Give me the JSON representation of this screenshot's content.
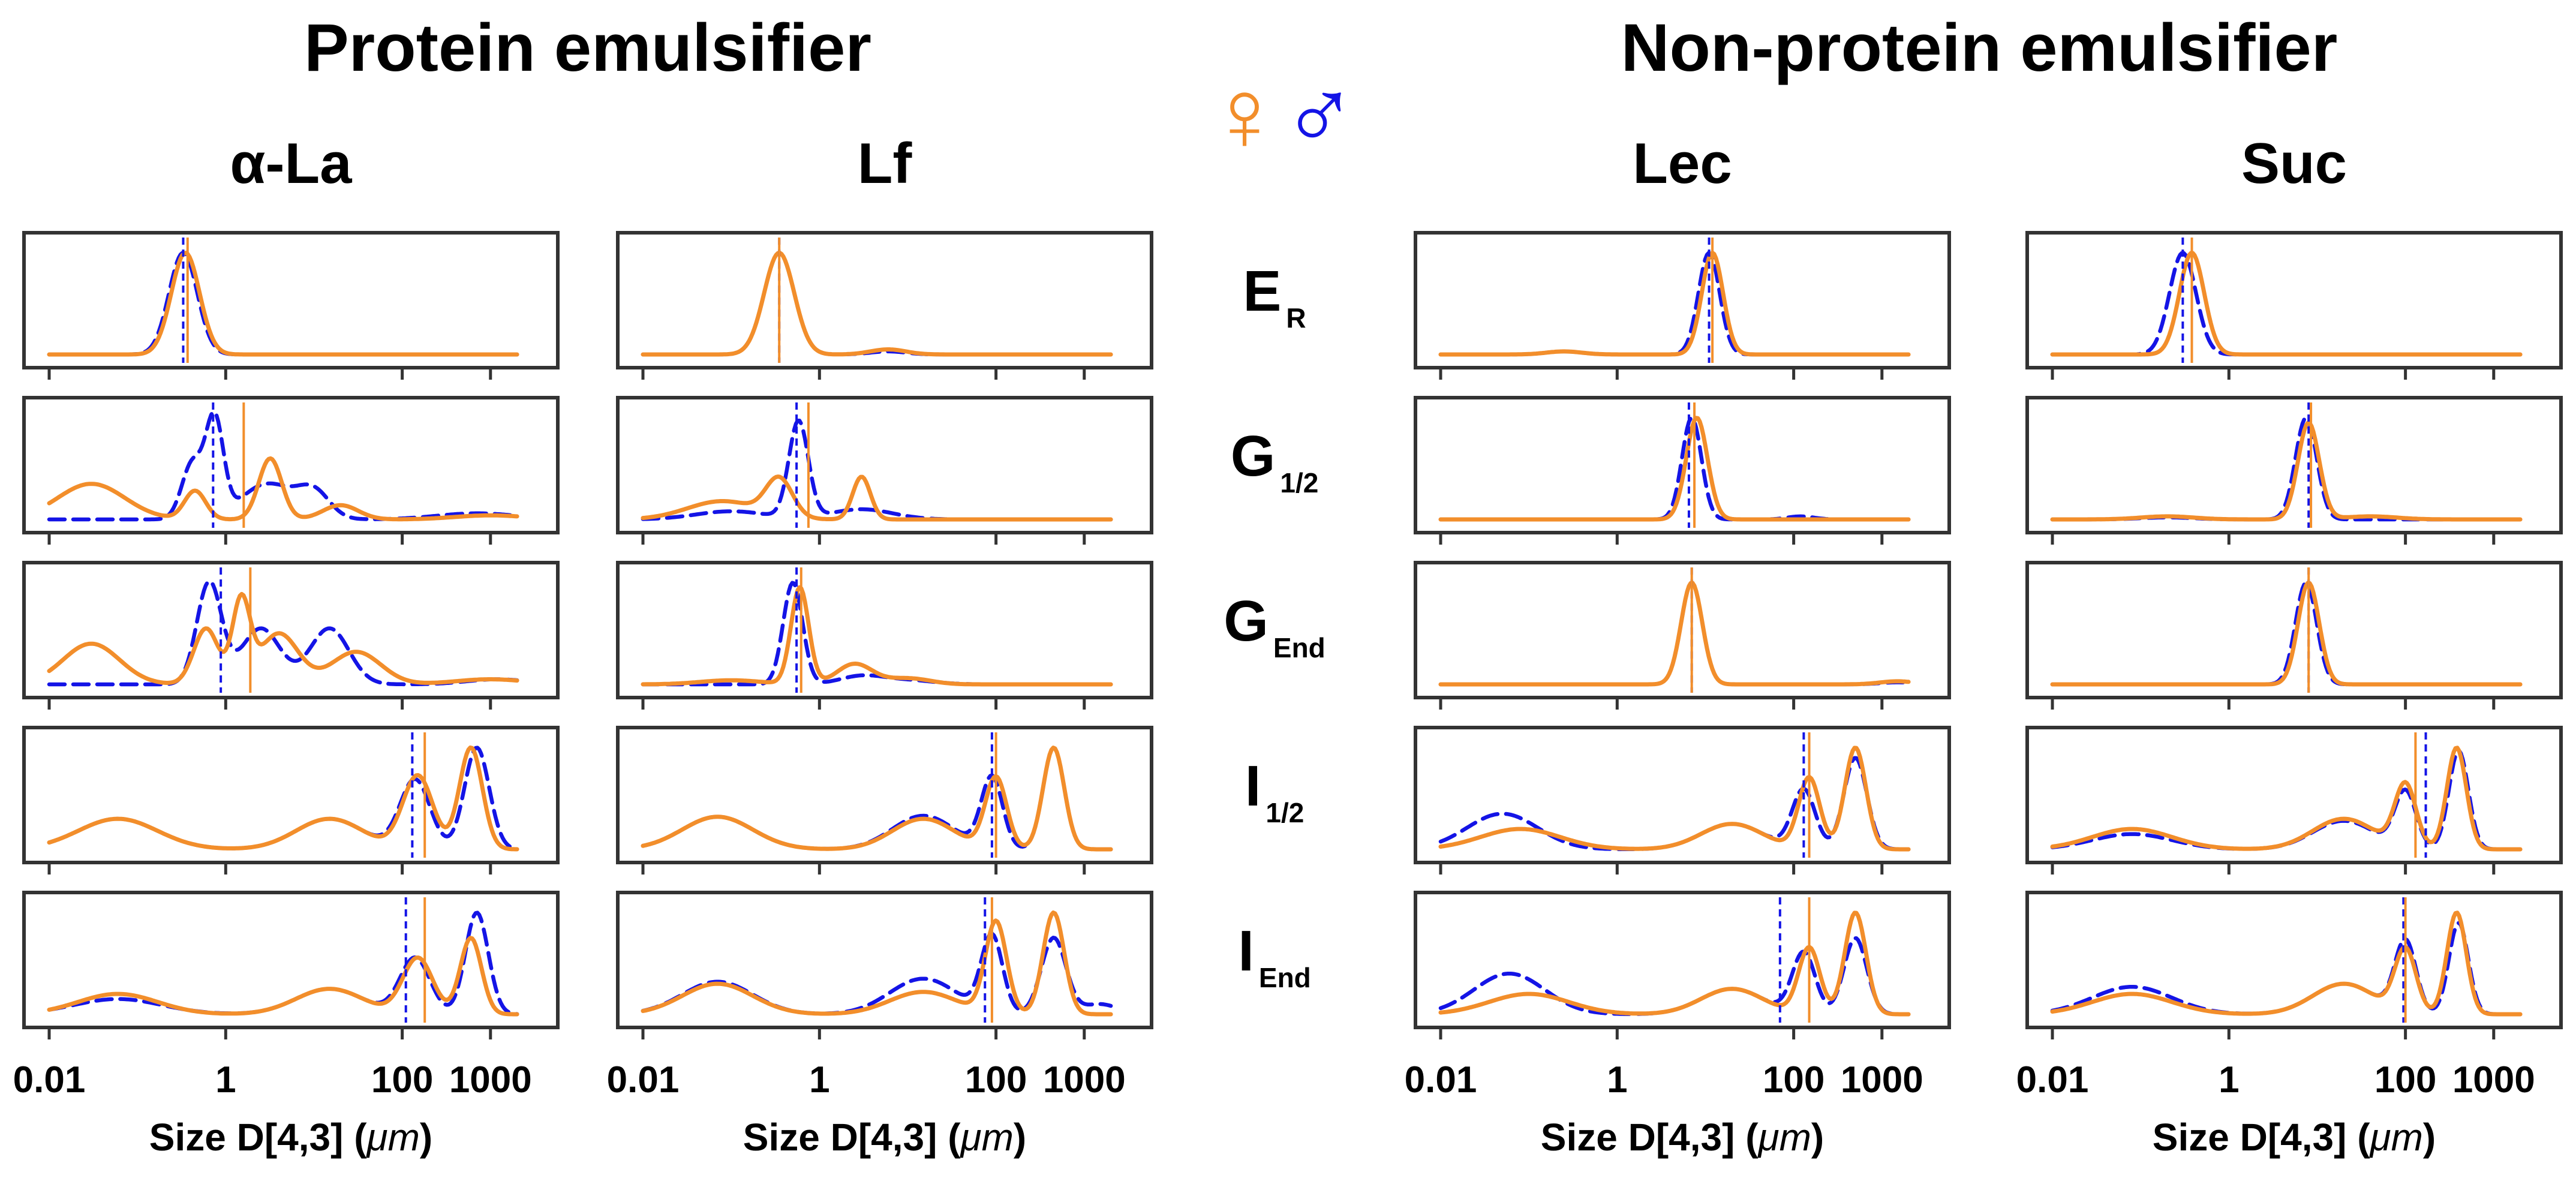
{
  "headers": {
    "protein_group": "Protein emulsifier",
    "nonprotein_group": "Non-protein emulsifier",
    "female_symbol": "♀",
    "male_symbol": "♂"
  },
  "columns": [
    {
      "key": "ala",
      "title": "α-La"
    },
    {
      "key": "lf",
      "title": "Lf"
    },
    {
      "key": "lec",
      "title": "Lec"
    },
    {
      "key": "suc",
      "title": "Suc"
    }
  ],
  "rows": [
    {
      "key": "er",
      "label_main": "E",
      "label_sub": "R"
    },
    {
      "key": "g12",
      "label_main": "G",
      "label_sub": "1/2"
    },
    {
      "key": "gend",
      "label_main": "G",
      "label_sub": "End"
    },
    {
      "key": "i12",
      "label_main": "I",
      "label_sub": "1/2"
    },
    {
      "key": "iend",
      "label_main": "I",
      "label_sub": "End"
    }
  ],
  "colors": {
    "female": "#f28e2b",
    "male": "#1414e6",
    "frame": "#333333"
  },
  "chart_data": {
    "type": "line",
    "x_scale": "log",
    "xlim": [
      0.01,
      3000
    ],
    "ylim": [
      0,
      1.15
    ],
    "y_ticks_visible": false,
    "xlabel_text": "Size D[4,3] (",
    "xlabel_unit": "μm",
    "xlabel_close": ")",
    "xticks": [
      {
        "value": 0.01,
        "label": "0.01"
      },
      {
        "value": 1,
        "label": "1"
      },
      {
        "value": 100,
        "label": "100"
      },
      {
        "value": 1000,
        "label": "1000"
      }
    ],
    "series_legend": [
      {
        "name": "female",
        "symbol": "♀",
        "style": "solid"
      },
      {
        "name": "male",
        "symbol": "♂",
        "style": "dashed"
      }
    ],
    "panels": {
      "ala": {
        "er": {
          "female": {
            "peaks": [
              [
                0.35,
                1.0,
                0.16
              ]
            ],
            "median": 0.37
          },
          "male": {
            "peaks": [
              [
                0.33,
                1.0,
                0.16
              ]
            ],
            "median": 0.33
          }
        },
        "g12": {
          "female": {
            "peaks": [
              [
                0.03,
                0.35,
                0.38
              ],
              [
                0.45,
                0.28,
                0.12
              ],
              [
                3.2,
                0.6,
                0.13
              ],
              [
                20,
                0.14,
                0.2
              ],
              [
                1000,
                0.04,
                0.4
              ]
            ],
            "median": 1.6
          },
          "male": {
            "peaks": [
              [
                0.42,
                0.55,
                0.12
              ],
              [
                0.75,
                0.95,
                0.1
              ],
              [
                3,
                0.35,
                0.3
              ],
              [
                10,
                0.25,
                0.18
              ],
              [
                700,
                0.06,
                0.45
              ]
            ],
            "median": 0.72
          }
        },
        "gend": {
          "female": {
            "peaks": [
              [
                0.03,
                0.4,
                0.32
              ],
              [
                0.6,
                0.55,
                0.14
              ],
              [
                1.5,
                0.8,
                0.1
              ],
              [
                4,
                0.5,
                0.22
              ],
              [
                30,
                0.32,
                0.28
              ],
              [
                1000,
                0.05,
                0.4
              ]
            ],
            "median": 1.9
          },
          "male": {
            "peaks": [
              [
                0.65,
                1.0,
                0.14
              ],
              [
                2.5,
                0.55,
                0.22
              ],
              [
                15,
                0.55,
                0.22
              ],
              [
                1200,
                0.05,
                0.35
              ]
            ],
            "median": 0.88
          }
        },
        "i12": {
          "female": {
            "peaks": [
              [
                0.06,
                0.3,
                0.45
              ],
              [
                15,
                0.3,
                0.38
              ],
              [
                150,
                0.72,
                0.17
              ],
              [
                600,
                1.0,
                0.13
              ]
            ],
            "median": 180
          },
          "male": {
            "peaks": [
              [
                0.06,
                0.3,
                0.45
              ],
              [
                15,
                0.3,
                0.38
              ],
              [
                140,
                0.68,
                0.17
              ],
              [
                700,
                1.0,
                0.14
              ]
            ],
            "median": 130
          }
        },
        "iend": {
          "female": {
            "peaks": [
              [
                0.06,
                0.2,
                0.45
              ],
              [
                15,
                0.25,
                0.38
              ],
              [
                150,
                0.55,
                0.17
              ],
              [
                600,
                0.75,
                0.12
              ]
            ],
            "median": 180
          },
          "male": {
            "peaks": [
              [
                0.06,
                0.15,
                0.5
              ],
              [
                15,
                0.25,
                0.38
              ],
              [
                140,
                0.55,
                0.17
              ],
              [
                700,
                1.0,
                0.13
              ]
            ],
            "median": 110
          }
        }
      },
      "lf": {
        "er": {
          "female": {
            "peaks": [
              [
                0.35,
                1.0,
                0.17
              ],
              [
                6,
                0.05,
                0.2
              ]
            ],
            "median": 0.35
          },
          "male": {
            "peaks": [
              [
                0.35,
                1.0,
                0.17
              ],
              [
                6,
                0.03,
                0.2
              ]
            ],
            "median": 0.35
          }
        },
        "g12": {
          "female": {
            "peaks": [
              [
                0.08,
                0.18,
                0.4
              ],
              [
                0.35,
                0.37,
                0.15
              ],
              [
                3,
                0.42,
                0.1
              ]
            ],
            "median": 0.75
          },
          "male": {
            "peaks": [
              [
                0.1,
                0.08,
                0.4
              ],
              [
                0.58,
                0.95,
                0.11
              ],
              [
                3,
                0.1,
                0.35
              ]
            ],
            "median": 0.55
          }
        },
        "gend": {
          "female": {
            "peaks": [
              [
                0.1,
                0.04,
                0.35
              ],
              [
                0.6,
                0.95,
                0.1
              ],
              [
                2.5,
                0.2,
                0.2
              ],
              [
                10,
                0.06,
                0.25
              ]
            ],
            "median": 0.62
          },
          "male": {
            "peaks": [
              [
                0.5,
                1.0,
                0.11
              ],
              [
                3,
                0.08,
                0.25
              ],
              [
                10,
                0.04,
                0.3
              ]
            ],
            "median": 0.55
          }
        },
        "i12": {
          "female": {
            "peaks": [
              [
                0.07,
                0.32,
                0.4
              ],
              [
                15,
                0.3,
                0.35
              ],
              [
                100,
                0.7,
                0.12
              ],
              [
                450,
                1.0,
                0.12
              ]
            ],
            "median": 100
          },
          "male": {
            "peaks": [
              [
                0.07,
                0.32,
                0.4
              ],
              [
                15,
                0.33,
                0.35
              ],
              [
                90,
                0.7,
                0.12
              ],
              [
                450,
                1.0,
                0.12
              ]
            ],
            "median": 90
          }
        },
        "iend": {
          "female": {
            "peaks": [
              [
                0.07,
                0.3,
                0.4
              ],
              [
                15,
                0.22,
                0.38
              ],
              [
                100,
                0.9,
                0.12
              ],
              [
                450,
                1.0,
                0.12
              ]
            ],
            "median": 90
          },
          "male": {
            "peaks": [
              [
                0.07,
                0.32,
                0.4
              ],
              [
                15,
                0.35,
                0.38
              ],
              [
                90,
                0.75,
                0.12
              ],
              [
                450,
                0.75,
                0.14
              ],
              [
                1500,
                0.1,
                0.2
              ]
            ],
            "median": 75
          }
        }
      },
      "lec": {
        "er": {
          "female": {
            "peaks": [
              [
                12,
                1.0,
                0.12
              ],
              [
                0.25,
                0.03,
                0.2
              ]
            ],
            "median": 12
          },
          "male": {
            "peaks": [
              [
                11,
                1.0,
                0.12
              ],
              [
                0.25,
                0.03,
                0.2
              ]
            ],
            "median": 11
          }
        },
        "g12": {
          "female": {
            "peaks": [
              [
                8,
                1.0,
                0.12
              ]
            ],
            "median": 7.5
          },
          "male": {
            "peaks": [
              [
                7,
                1.0,
                0.11
              ],
              [
                120,
                0.03,
                0.15
              ]
            ],
            "median": 6.5
          }
        },
        "gend": {
          "female": {
            "peaks": [
              [
                7,
                1.0,
                0.12
              ],
              [
                1500,
                0.03,
                0.2
              ]
            ],
            "median": 7
          },
          "male": {
            "peaks": [
              [
                7,
                1.0,
                0.12
              ],
              [
                1500,
                0.02,
                0.2
              ]
            ],
            "median": 7
          }
        },
        "i12": {
          "female": {
            "peaks": [
              [
                0.08,
                0.2,
                0.45
              ],
              [
                20,
                0.25,
                0.35
              ],
              [
                150,
                0.7,
                0.12
              ],
              [
                500,
                1.0,
                0.12
              ]
            ],
            "median": 150
          },
          "male": {
            "peaks": [
              [
                0.05,
                0.35,
                0.4
              ],
              [
                20,
                0.25,
                0.35
              ],
              [
                130,
                0.58,
                0.13
              ],
              [
                500,
                0.9,
                0.13
              ]
            ],
            "median": 130
          }
        },
        "iend": {
          "female": {
            "peaks": [
              [
                0.1,
                0.2,
                0.45
              ],
              [
                20,
                0.25,
                0.35
              ],
              [
                150,
                0.65,
                0.12
              ],
              [
                500,
                1.0,
                0.12
              ]
            ],
            "median": 150
          },
          "male": {
            "peaks": [
              [
                0.06,
                0.4,
                0.4
              ],
              [
                20,
                0.25,
                0.35
              ],
              [
                130,
                0.6,
                0.13
              ],
              [
                500,
                0.75,
                0.13
              ]
            ],
            "median": 70
          }
        }
      },
      "suc": {
        "er": {
          "female": {
            "peaks": [
              [
                0.38,
                1.0,
                0.14
              ]
            ],
            "median": 0.38
          },
          "male": {
            "peaks": [
              [
                0.3,
                1.0,
                0.15
              ]
            ],
            "median": 0.3
          }
        },
        "g12": {
          "female": {
            "peaks": [
              [
                8,
                0.95,
                0.12
              ],
              [
                0.2,
                0.03,
                0.3
              ],
              [
                40,
                0.03,
                0.3
              ]
            ],
            "median": 8.5
          },
          "male": {
            "peaks": [
              [
                7.5,
                1.0,
                0.12
              ],
              [
                0.2,
                0.02,
                0.3
              ]
            ],
            "median": 8
          }
        },
        "gend": {
          "female": {
            "peaks": [
              [
                8,
                1.0,
                0.12
              ]
            ],
            "median": 8
          },
          "male": {
            "peaks": [
              [
                7.5,
                1.0,
                0.12
              ]
            ],
            "median": 8
          }
        },
        "i12": {
          "female": {
            "peaks": [
              [
                0.08,
                0.2,
                0.45
              ],
              [
                20,
                0.3,
                0.35
              ],
              [
                100,
                0.62,
                0.12
              ],
              [
                380,
                1.0,
                0.11
              ]
            ],
            "median": 130
          },
          "male": {
            "peaks": [
              [
                0.08,
                0.15,
                0.45
              ],
              [
                20,
                0.28,
                0.35
              ],
              [
                100,
                0.55,
                0.12
              ],
              [
                400,
                0.97,
                0.11
              ]
            ],
            "median": 170
          }
        },
        "iend": {
          "female": {
            "peaks": [
              [
                0.08,
                0.2,
                0.45
              ],
              [
                20,
                0.3,
                0.35
              ],
              [
                100,
                0.62,
                0.12
              ],
              [
                380,
                1.0,
                0.11
              ]
            ],
            "median": 100
          },
          "male": {
            "peaks": [
              [
                0.08,
                0.27,
                0.45
              ],
              [
                20,
                0.3,
                0.35
              ],
              [
                100,
                0.7,
                0.12
              ],
              [
                400,
                0.9,
                0.11
              ]
            ],
            "median": 95
          }
        }
      }
    }
  }
}
